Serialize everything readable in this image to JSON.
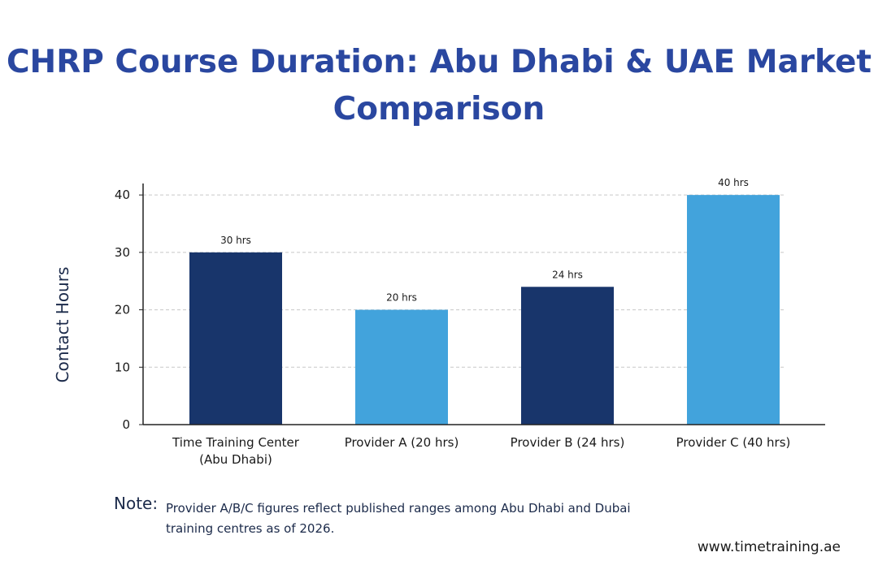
{
  "title": "CHRP Course Duration: Abu Dhabi & UAE Market Comparison",
  "note": {
    "label": "Note:",
    "text": "Provider A/B/C figures reflect published ranges among Abu Dhabi and Dubai training centres as of 2026."
  },
  "footer": "www.timetraining.ae",
  "colors": {
    "title": "#2a47a0",
    "dark_bar": "#18356b",
    "light_bar": "#42a3dc"
  },
  "chart_data": {
    "type": "bar",
    "title": "CHRP Course Duration: Abu Dhabi & UAE Market Comparison",
    "xlabel": "",
    "ylabel": "Contact Hours",
    "ylim": [
      0,
      42
    ],
    "yticks": [
      0,
      10,
      20,
      30,
      40
    ],
    "grid": true,
    "categories": [
      [
        "Time Training Center",
        "(Abu Dhabi)"
      ],
      [
        "Provider A (20 hrs)"
      ],
      [
        "Provider B (24 hrs)"
      ],
      [
        "Provider C (40 hrs)"
      ]
    ],
    "values": [
      30,
      20,
      24,
      40
    ],
    "data_labels": [
      "30 hrs",
      "20 hrs",
      "24 hrs",
      "40 hrs"
    ],
    "bar_colors": [
      "#18356b",
      "#42a3dc",
      "#18356b",
      "#42a3dc"
    ]
  }
}
